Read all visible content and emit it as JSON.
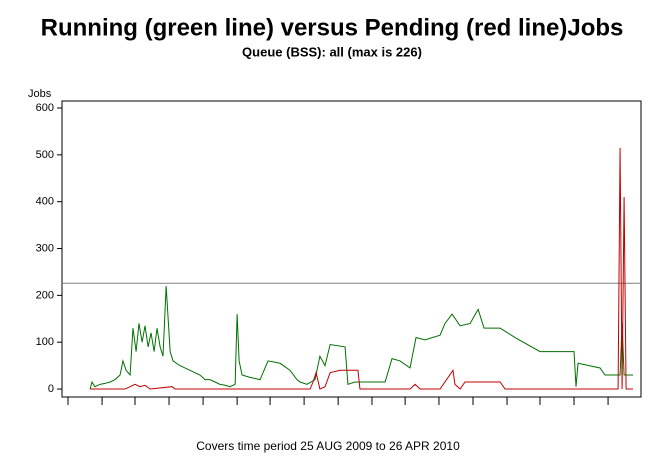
{
  "chart_data": {
    "type": "line",
    "title": "Running (green line) versus Pending (red line)Jobs",
    "subtitle": "Queue (BSS): all (max is 226)",
    "y_label": "Jobs",
    "footer": "Covers time period 25 AUG 2009 to 26 APR 2010",
    "reference_line": 226,
    "reference_color": "#808080",
    "xlim": [
      -12.6,
      247.6
    ],
    "xticks": [
      -9.9,
      5.4,
      20.2,
      35.5,
      50.8,
      66.1,
      80.9,
      96.2,
      111.5,
      126.7,
      141.6,
      156.8,
      172.1,
      187.4,
      202.2,
      217.5,
      232.8
    ],
    "ylim": [
      -17,
      615
    ],
    "yticks": [
      0,
      100,
      200,
      300,
      400,
      500,
      600
    ],
    "series": [
      {
        "name": "Running",
        "color": "#007000",
        "x": [
          0,
          0.9,
          2.2,
          4.5,
          6.7,
          9.0,
          11.2,
          13.5,
          14.8,
          16.2,
          18.0,
          19.3,
          20.7,
          22.0,
          23.4,
          24.7,
          26.1,
          27.4,
          28.8,
          30.1,
          31.5,
          32.8,
          34.2,
          35.1,
          36.0,
          37.3,
          40.4,
          44.9,
          49.4,
          51.7,
          53.9,
          56.2,
          58.4,
          60.7,
          62.9,
          65.2,
          66.1,
          67.0,
          68.3,
          71.9,
          76.4,
          80.0,
          85.4,
          89.9,
          93.0,
          94.4,
          97.5,
          101.1,
          103.3,
          105.6,
          107.9,
          114.6,
          115.9,
          119.1,
          132.6,
          135.7,
          139.3,
          143.8,
          146.5,
          150.5,
          157.3,
          159.5,
          162.7,
          166.3,
          170.8,
          174.4,
          177.1,
          184.3,
          191.0,
          202.2,
          217.5,
          218.4,
          219.3,
          229.2,
          231.4,
          238.2,
          239.1,
          240.0,
          244.0
        ],
        "values": [
          0,
          15,
          5,
          10,
          12,
          15,
          20,
          30,
          60,
          40,
          30,
          130,
          80,
          140,
          100,
          135,
          90,
          120,
          80,
          130,
          90,
          70,
          220,
          150,
          80,
          60,
          50,
          40,
          30,
          20,
          20,
          15,
          10,
          8,
          5,
          10,
          160,
          60,
          30,
          25,
          20,
          60,
          55,
          40,
          20,
          15,
          10,
          20,
          70,
          50,
          95,
          90,
          10,
          15,
          15,
          65,
          60,
          45,
          110,
          105,
          115,
          140,
          160,
          135,
          140,
          170,
          130,
          130,
          110,
          80,
          80,
          5,
          55,
          45,
          30,
          30,
          140,
          30,
          30
        ]
      },
      {
        "name": "Pending",
        "color": "#c00000",
        "x": [
          0,
          15.7,
          18.0,
          20.2,
          22.5,
          24.7,
          27.0,
          36.9,
          38.2,
          98.9,
          100.2,
          101.6,
          103.3,
          105.6,
          107.9,
          112.4,
          120.4,
          121.3,
          143.8,
          146.1,
          148.3,
          157.3,
          163.1,
          164.0,
          166.3,
          168.5,
          184.3,
          186.5,
          237.3,
          238.2,
          239.1,
          240.0,
          240.9,
          244.0
        ],
        "values": [
          0,
          0,
          5,
          10,
          5,
          8,
          0,
          5,
          0,
          0,
          15,
          35,
          0,
          5,
          35,
          40,
          40,
          0,
          0,
          10,
          0,
          0,
          40,
          10,
          0,
          15,
          15,
          0,
          0,
          515,
          0,
          410,
          0,
          0
        ]
      }
    ]
  }
}
